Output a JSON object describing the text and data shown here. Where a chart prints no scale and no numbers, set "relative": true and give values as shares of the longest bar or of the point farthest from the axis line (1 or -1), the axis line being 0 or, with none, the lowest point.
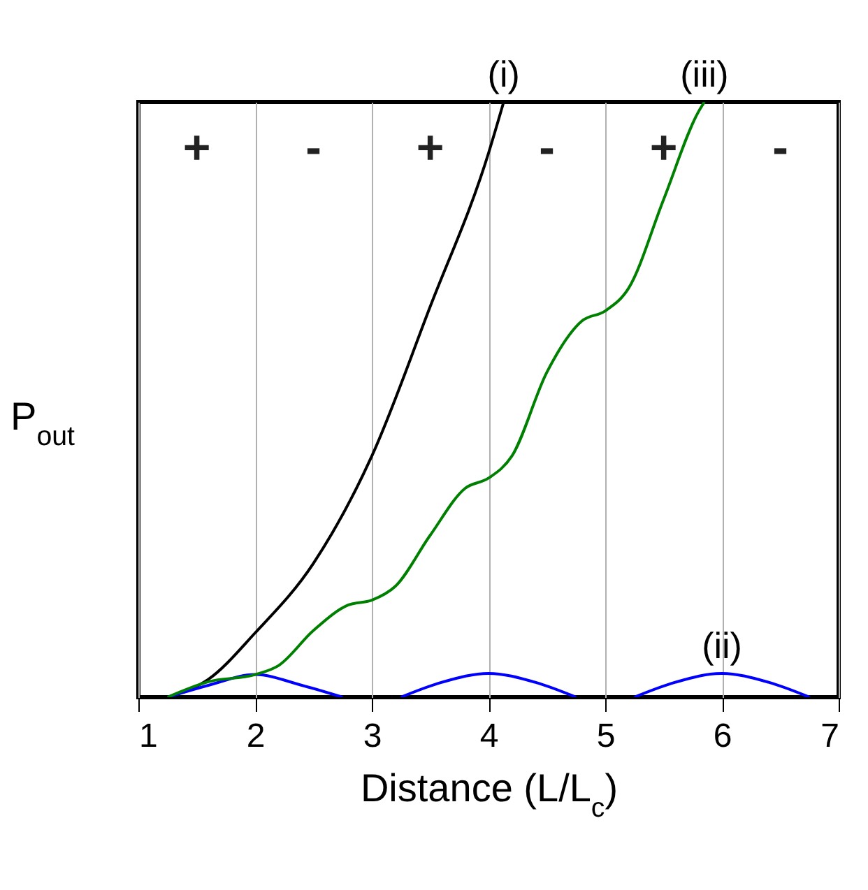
{
  "chart_data": {
    "type": "line",
    "xlabel": "Distance (L/L$_{c}$)",
    "ylabel": "P$_{out}$",
    "relative": true,
    "xlim": [
      1,
      7
    ],
    "xticks": [
      1,
      2,
      3,
      4,
      5,
      6,
      7
    ],
    "grid": "x",
    "series": [
      {
        "name": "(i)",
        "color": "#000000",
        "x": [
          1.25,
          1.6,
          2,
          2.5,
          3,
          3.5,
          4,
          4.13
        ],
        "values": [
          0,
          0.03,
          0.108,
          0.225,
          0.405,
          0.656,
          0.914,
          1
        ]
      },
      {
        "name": "(ii)",
        "color": "#0000ff",
        "x": [
          1.25,
          1.6,
          2,
          2.4,
          2.75,
          3,
          3.25,
          3.6,
          4,
          4.4,
          4.75,
          5,
          5.25,
          5.6,
          6,
          6.4,
          6.75
        ],
        "values": [
          0,
          0.02,
          0.038,
          0.02,
          0,
          null,
          0,
          0.025,
          0.04,
          0.025,
          0,
          null,
          0,
          0.025,
          0.04,
          0.025,
          0
        ]
      },
      {
        "name": "(iii)",
        "color": "#008000",
        "x": [
          1.25,
          1.6,
          2,
          2.2,
          2.5,
          2.8,
          3,
          3.2,
          3.5,
          3.8,
          4,
          4.2,
          4.5,
          4.8,
          5,
          5.2,
          5.5,
          5.8,
          5.85
        ],
        "values": [
          0,
          0.026,
          0.038,
          0.053,
          0.112,
          0.155,
          0.163,
          0.186,
          0.272,
          0.351,
          0.368,
          0.405,
          0.546,
          0.632,
          0.649,
          0.687,
          0.836,
          0.984,
          1
        ]
      }
    ],
    "annotations": [
      "+",
      "-",
      "+",
      "-",
      "+",
      "-"
    ]
  }
}
